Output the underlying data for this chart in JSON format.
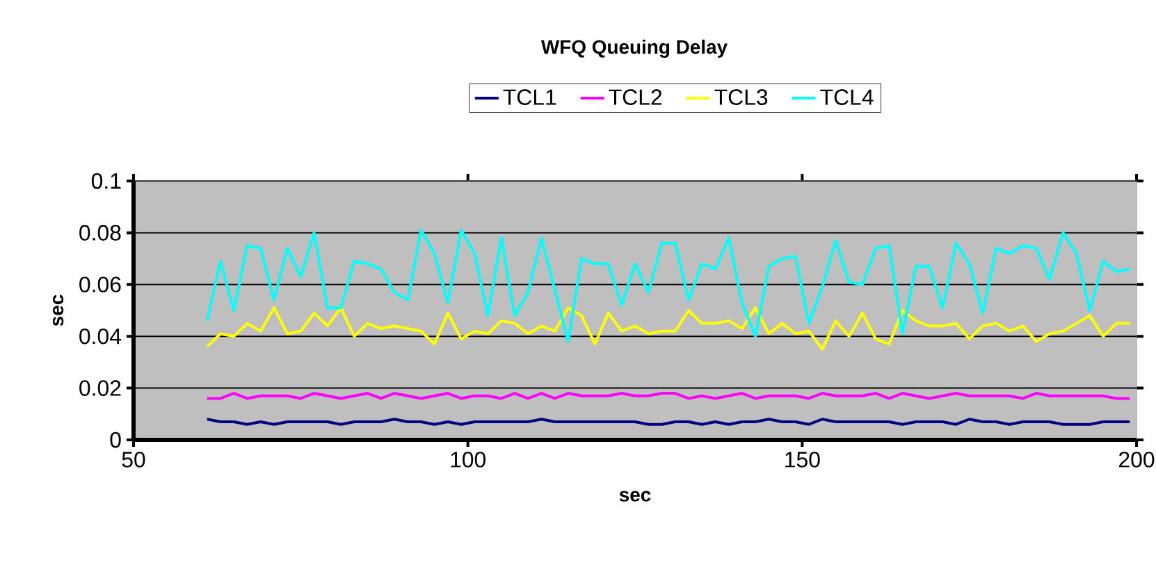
{
  "chart_data": {
    "type": "line",
    "title": "WFQ Queuing Delay",
    "xlabel": "sec",
    "ylabel": "sec",
    "x": [
      61,
      63,
      65,
      67,
      69,
      71,
      73,
      75,
      77,
      79,
      81,
      83,
      85,
      87,
      89,
      91,
      93,
      95,
      97,
      99,
      101,
      103,
      105,
      107,
      109,
      111,
      113,
      115,
      117,
      119,
      121,
      123,
      125,
      127,
      129,
      131,
      133,
      135,
      137,
      139,
      141,
      143,
      145,
      147,
      149,
      151,
      153,
      155,
      157,
      159,
      161,
      163,
      165,
      167,
      169,
      171,
      173,
      175,
      177,
      179,
      181,
      183,
      185,
      187,
      189,
      191,
      193,
      195,
      197,
      199
    ],
    "series": [
      {
        "name": "TCL1",
        "color": "#000080",
        "values": [
          0.008,
          0.007,
          0.007,
          0.006,
          0.007,
          0.006,
          0.007,
          0.007,
          0.007,
          0.007,
          0.006,
          0.007,
          0.007,
          0.007,
          0.008,
          0.007,
          0.007,
          0.006,
          0.007,
          0.006,
          0.007,
          0.007,
          0.007,
          0.007,
          0.007,
          0.008,
          0.007,
          0.007,
          0.007,
          0.007,
          0.007,
          0.007,
          0.007,
          0.006,
          0.006,
          0.007,
          0.007,
          0.006,
          0.007,
          0.006,
          0.007,
          0.007,
          0.008,
          0.007,
          0.007,
          0.006,
          0.008,
          0.007,
          0.007,
          0.007,
          0.007,
          0.007,
          0.006,
          0.007,
          0.007,
          0.007,
          0.006,
          0.008,
          0.007,
          0.007,
          0.006,
          0.007,
          0.007,
          0.007,
          0.006,
          0.006,
          0.006,
          0.007,
          0.007,
          0.007
        ]
      },
      {
        "name": "TCL2",
        "color": "#ff00ff",
        "values": [
          0.016,
          0.016,
          0.018,
          0.016,
          0.017,
          0.017,
          0.017,
          0.016,
          0.018,
          0.017,
          0.016,
          0.017,
          0.018,
          0.016,
          0.018,
          0.017,
          0.016,
          0.017,
          0.018,
          0.016,
          0.017,
          0.017,
          0.016,
          0.018,
          0.016,
          0.018,
          0.016,
          0.018,
          0.017,
          0.017,
          0.017,
          0.018,
          0.017,
          0.017,
          0.018,
          0.018,
          0.016,
          0.017,
          0.016,
          0.017,
          0.018,
          0.016,
          0.017,
          0.017,
          0.017,
          0.016,
          0.018,
          0.017,
          0.017,
          0.017,
          0.018,
          0.016,
          0.018,
          0.017,
          0.016,
          0.017,
          0.018,
          0.017,
          0.017,
          0.017,
          0.017,
          0.016,
          0.018,
          0.017,
          0.017,
          0.017,
          0.017,
          0.017,
          0.016,
          0.016
        ]
      },
      {
        "name": "TCL3",
        "color": "#ffff00",
        "values": [
          0.036,
          0.041,
          0.04,
          0.045,
          0.042,
          0.051,
          0.041,
          0.042,
          0.049,
          0.044,
          0.051,
          0.04,
          0.045,
          0.043,
          0.044,
          0.043,
          0.042,
          0.037,
          0.049,
          0.039,
          0.042,
          0.041,
          0.046,
          0.045,
          0.041,
          0.044,
          0.042,
          0.051,
          0.048,
          0.037,
          0.049,
          0.042,
          0.044,
          0.041,
          0.042,
          0.042,
          0.05,
          0.045,
          0.045,
          0.046,
          0.043,
          0.051,
          0.041,
          0.045,
          0.041,
          0.042,
          0.035,
          0.046,
          0.04,
          0.049,
          0.039,
          0.037,
          0.05,
          0.046,
          0.044,
          0.044,
          0.045,
          0.039,
          0.044,
          0.045,
          0.042,
          0.044,
          0.038,
          0.041,
          0.042,
          0.045,
          0.048,
          0.04,
          0.045,
          0.045
        ]
      },
      {
        "name": "TCL4",
        "color": "#00ffff",
        "values": [
          0.046,
          0.069,
          0.05,
          0.075,
          0.074,
          0.054,
          0.074,
          0.063,
          0.08,
          0.051,
          0.051,
          0.069,
          0.068,
          0.066,
          0.057,
          0.054,
          0.081,
          0.072,
          0.053,
          0.081,
          0.072,
          0.048,
          0.078,
          0.048,
          0.057,
          0.078,
          0.058,
          0.038,
          0.07,
          0.068,
          0.068,
          0.052,
          0.068,
          0.057,
          0.076,
          0.076,
          0.054,
          0.068,
          0.066,
          0.078,
          0.053,
          0.04,
          0.067,
          0.07,
          0.071,
          0.045,
          0.059,
          0.077,
          0.061,
          0.06,
          0.074,
          0.075,
          0.041,
          0.067,
          0.067,
          0.051,
          0.076,
          0.068,
          0.049,
          0.074,
          0.072,
          0.075,
          0.074,
          0.062,
          0.08,
          0.072,
          0.05,
          0.069,
          0.065,
          0.066
        ]
      }
    ],
    "xlim": [
      50,
      200
    ],
    "xticks": [
      50,
      100,
      150,
      200
    ],
    "ylim": [
      0,
      0.1
    ],
    "yticks": [
      {
        "value": 0,
        "label": "0"
      },
      {
        "value": 0.02,
        "label": "0.02"
      },
      {
        "value": 0.04,
        "label": "0.04"
      },
      {
        "value": 0.06,
        "label": "0.06"
      },
      {
        "value": 0.08,
        "label": "0.08"
      },
      {
        "value": 0.1,
        "label": "0.1"
      }
    ],
    "grid": "y",
    "legend": "top",
    "marker": "none",
    "line_style": "solid"
  }
}
